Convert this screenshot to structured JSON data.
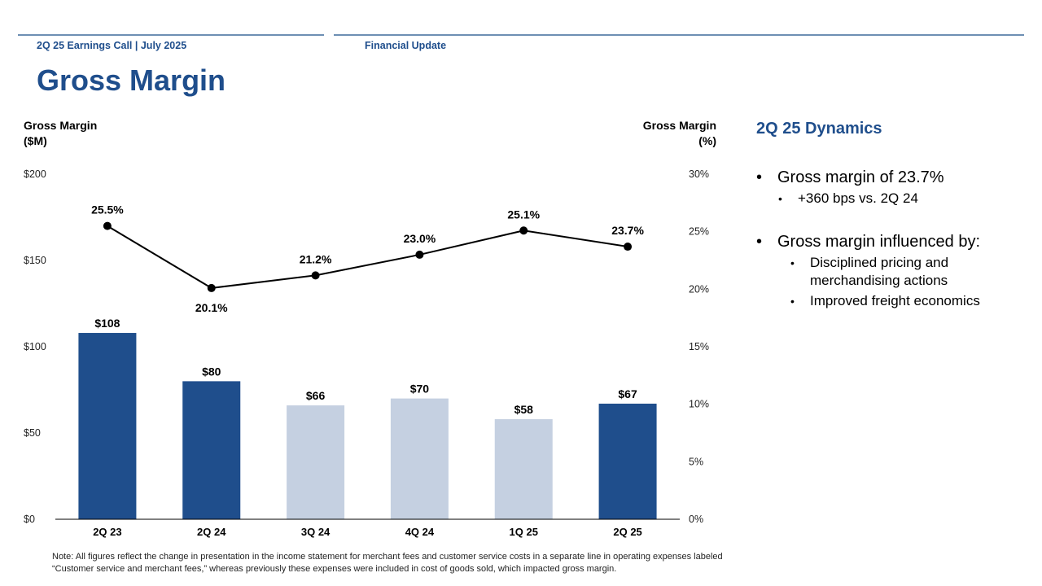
{
  "header": {
    "left": "2Q 25 Earnings Call | July 2025",
    "right": "Financial Update"
  },
  "title": "Gross Margin",
  "chart_data": {
    "type": "bar+line",
    "categories": [
      "2Q 23",
      "2Q 24",
      "3Q 24",
      "4Q 24",
      "1Q 25",
      "2Q 25"
    ],
    "bars": {
      "name": "Gross Margin ($M)",
      "values": [
        108,
        80,
        66,
        70,
        58,
        67
      ],
      "labels": [
        "$108",
        "$80",
        "$66",
        "$70",
        "$58",
        "$67"
      ],
      "highlight": [
        true,
        true,
        false,
        false,
        false,
        true
      ],
      "color_dark": "#1f4e8c",
      "color_light": "#c5d0e1"
    },
    "line": {
      "name": "Gross Margin (%)",
      "values": [
        25.5,
        20.1,
        21.2,
        23.0,
        25.1,
        23.7
      ],
      "labels": [
        "25.5%",
        "20.1%",
        "21.2%",
        "23.0%",
        "25.1%",
        "23.7%"
      ],
      "label_side": [
        "above",
        "below",
        "above",
        "above",
        "above",
        "above"
      ]
    },
    "y_left": {
      "label_line1": "Gross Margin",
      "label_line2": "($M)",
      "range": [
        0,
        200
      ],
      "ticks": [
        0,
        50,
        100,
        150,
        200
      ],
      "tick_labels": [
        "$0",
        "$50",
        "$100",
        "$150",
        "$200"
      ]
    },
    "y_right": {
      "label_line1": "Gross Margin",
      "label_line2": "(%)",
      "range": [
        0,
        30
      ],
      "ticks": [
        0,
        5,
        10,
        15,
        20,
        25,
        30
      ],
      "tick_labels": [
        "0%",
        "5%",
        "10%",
        "15%",
        "20%",
        "25%",
        "30%"
      ]
    }
  },
  "sidebar": {
    "title": "2Q 25 Dynamics",
    "bullet1": "Gross margin of 23.7%",
    "bullet1_sub": "+360 bps vs. 2Q 24",
    "bullet2": "Gross margin influenced by:",
    "bullet2_sub1a": "Disciplined pricing and",
    "bullet2_sub1b": "merchandising actions",
    "bullet2_sub2": "Improved freight economics"
  },
  "note_line1": "Note: All figures reflect the change in presentation in the income statement for merchant fees and customer service costs in a separate line in operating expenses labeled",
  "note_line2": "“Customer service and merchant fees,” whereas previously these expenses were included in cost of goods sold, which impacted gross margin."
}
